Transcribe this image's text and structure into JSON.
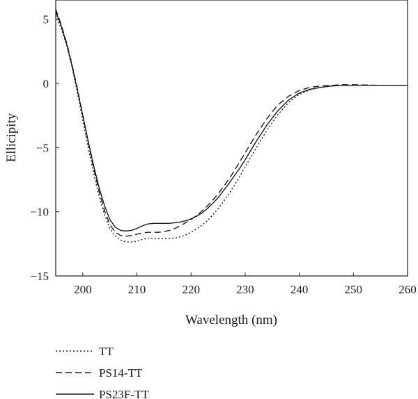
{
  "chart_data": {
    "type": "line",
    "xlabel": "Wavelength (nm)",
    "ylabel": "Ellicipity",
    "xlim": [
      195,
      260
    ],
    "ylim": [
      -15,
      6.5
    ],
    "xticks": [
      200,
      210,
      220,
      230,
      240,
      250,
      260
    ],
    "xtick_labels": [
      "200",
      "210",
      "220",
      "230",
      "240",
      "250",
      "260"
    ],
    "yticks": [
      -15,
      -10,
      -5,
      0,
      5
    ],
    "ytick_labels": [
      "−15",
      "−10",
      "−5",
      "0",
      "5"
    ],
    "grid": false,
    "legend_position": "below plot, left",
    "series": [
      {
        "name": "TT",
        "style": "dotted",
        "color": "#1a1a1a",
        "x": [
          195,
          196,
          197,
          198,
          199,
          200,
          201,
          202,
          203,
          204,
          205,
          206,
          207,
          208,
          209,
          210,
          211,
          212,
          213,
          214,
          215,
          216,
          217,
          218,
          219,
          220,
          221,
          222,
          223,
          224,
          225,
          226,
          227,
          228,
          229,
          230,
          232,
          234,
          236,
          238,
          240,
          242,
          244,
          246,
          248,
          250,
          252,
          255,
          258,
          260
        ],
        "y": [
          5.3,
          4.3,
          3.0,
          1.3,
          -0.7,
          -2.9,
          -5.0,
          -7.0,
          -8.8,
          -10.2,
          -11.3,
          -11.9,
          -12.2,
          -12.35,
          -12.35,
          -12.3,
          -12.15,
          -12.05,
          -12.05,
          -12.1,
          -12.1,
          -12.1,
          -12.05,
          -11.95,
          -11.8,
          -11.6,
          -11.35,
          -11.05,
          -10.7,
          -10.25,
          -9.75,
          -9.2,
          -8.6,
          -7.95,
          -7.25,
          -6.5,
          -5.05,
          -3.65,
          -2.45,
          -1.5,
          -0.85,
          -0.5,
          -0.3,
          -0.2,
          -0.15,
          -0.15,
          -0.15,
          -0.15,
          -0.15,
          -0.15
        ]
      },
      {
        "name": "PS14-TT",
        "style": "dashed",
        "color": "#1a1a1a",
        "x": [
          195,
          196,
          197,
          198,
          199,
          200,
          201,
          202,
          203,
          204,
          205,
          206,
          207,
          208,
          209,
          210,
          211,
          212,
          213,
          214,
          215,
          216,
          217,
          218,
          219,
          220,
          221,
          222,
          223,
          224,
          225,
          226,
          227,
          228,
          229,
          230,
          232,
          234,
          236,
          238,
          240,
          242,
          244,
          246,
          248,
          250,
          252,
          255,
          258,
          260
        ],
        "y": [
          5.8,
          4.6,
          3.2,
          1.5,
          -0.4,
          -2.5,
          -4.6,
          -6.6,
          -8.4,
          -9.9,
          -11.0,
          -11.6,
          -11.85,
          -11.9,
          -11.85,
          -11.75,
          -11.65,
          -11.6,
          -11.6,
          -11.6,
          -11.55,
          -11.45,
          -11.3,
          -11.1,
          -10.85,
          -10.6,
          -10.3,
          -9.95,
          -9.55,
          -9.1,
          -8.6,
          -8.05,
          -7.45,
          -6.8,
          -6.1,
          -5.4,
          -4.0,
          -2.75,
          -1.7,
          -1.0,
          -0.55,
          -0.3,
          -0.2,
          -0.15,
          -0.1,
          -0.1,
          -0.12,
          -0.15,
          -0.15,
          -0.15
        ]
      },
      {
        "name": "PS23F-TT",
        "style": "solid",
        "color": "#1a1a1a",
        "x": [
          195,
          196,
          197,
          198,
          199,
          200,
          201,
          202,
          203,
          204,
          205,
          206,
          207,
          208,
          209,
          210,
          211,
          212,
          213,
          214,
          215,
          216,
          217,
          218,
          219,
          220,
          221,
          222,
          223,
          224,
          225,
          226,
          227,
          228,
          229,
          230,
          232,
          234,
          236,
          238,
          240,
          242,
          244,
          246,
          248,
          250,
          252,
          255,
          258,
          260
        ],
        "y": [
          5.6,
          4.5,
          3.1,
          1.4,
          -0.5,
          -2.5,
          -4.5,
          -6.4,
          -8.1,
          -9.5,
          -10.6,
          -11.2,
          -11.45,
          -11.5,
          -11.45,
          -11.3,
          -11.1,
          -10.95,
          -10.9,
          -10.9,
          -10.9,
          -10.9,
          -10.85,
          -10.8,
          -10.7,
          -10.55,
          -10.35,
          -10.1,
          -9.75,
          -9.35,
          -8.9,
          -8.35,
          -7.8,
          -7.2,
          -6.6,
          -5.95,
          -4.55,
          -3.25,
          -2.15,
          -1.3,
          -0.75,
          -0.45,
          -0.3,
          -0.2,
          -0.15,
          -0.15,
          -0.15,
          -0.15,
          -0.15,
          -0.15
        ]
      }
    ]
  }
}
